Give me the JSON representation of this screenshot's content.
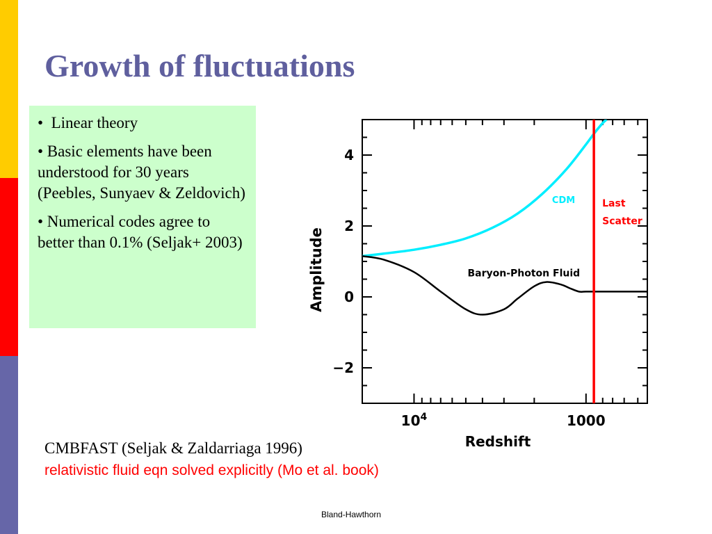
{
  "slide": {
    "title": "Growth of fluctuations",
    "bullets": [
      "Linear theory",
      "• Basic elements have been understood for 30 years (Peebles, Sunyaev & Zeldovich)",
      "• Numerical codes agree to better than 0.1% (Seljak+ 2003)"
    ],
    "bullet_marker": "•",
    "caption_line1": "CMBFAST (Seljak & Zaldarriaga 1996)",
    "caption_line2": "relativistic fluid eqn solved explicitly (Mo et al. book)",
    "footer": "Bland-Hawthorn",
    "colors": {
      "title": "#5f5f9e",
      "box": "#ccffcc",
      "caption_red": "#ff0000",
      "bar_yellow": "#ffcc00",
      "bar_red": "#ff0000",
      "bar_blue": "#6666a8"
    }
  },
  "chart_data": {
    "type": "line",
    "xlabel": "Redshift",
    "ylabel": "Amplitude",
    "x_scale": "log",
    "x_reversed": true,
    "xlim": [
      20000,
      440
    ],
    "ylim": [
      -3,
      5
    ],
    "x_tick_labels": [
      {
        "value": 10000,
        "label": "10",
        "sup": "4"
      },
      {
        "value": 1000,
        "label": "1000"
      }
    ],
    "y_ticks": [
      {
        "value": 4,
        "label": "4"
      },
      {
        "value": 2,
        "label": "2"
      },
      {
        "value": 0,
        "label": "0"
      },
      {
        "value": -2,
        "label": "−2"
      }
    ],
    "series": [
      {
        "name": "CDM",
        "color": "#00eeff",
        "x": [
          20000,
          15000,
          10000,
          7000,
          5000,
          3500,
          2500,
          1800,
          1300,
          1000,
          900,
          800,
          760
        ],
        "y": [
          1.15,
          1.22,
          1.33,
          1.47,
          1.65,
          1.95,
          2.35,
          2.9,
          3.6,
          4.3,
          4.6,
          4.9,
          5.0
        ]
      },
      {
        "name": "Baryon-Photon Fluid",
        "color": "#000000",
        "x": [
          20000,
          15000,
          10000,
          7000,
          5000,
          4000,
          3000,
          2500,
          2000,
          1700,
          1400,
          1250,
          1100,
          1000,
          900,
          880,
          600,
          440
        ],
        "y": [
          1.15,
          1.05,
          0.7,
          0.15,
          -0.35,
          -0.5,
          -0.35,
          -0.05,
          0.3,
          0.42,
          0.35,
          0.25,
          0.15,
          0.15,
          0.15,
          0.15,
          0.15,
          0.15
        ]
      }
    ],
    "vertical_line": {
      "x": 900,
      "label_line1": "Last",
      "label_line2": "Scatter",
      "color": "#ff0000"
    }
  }
}
